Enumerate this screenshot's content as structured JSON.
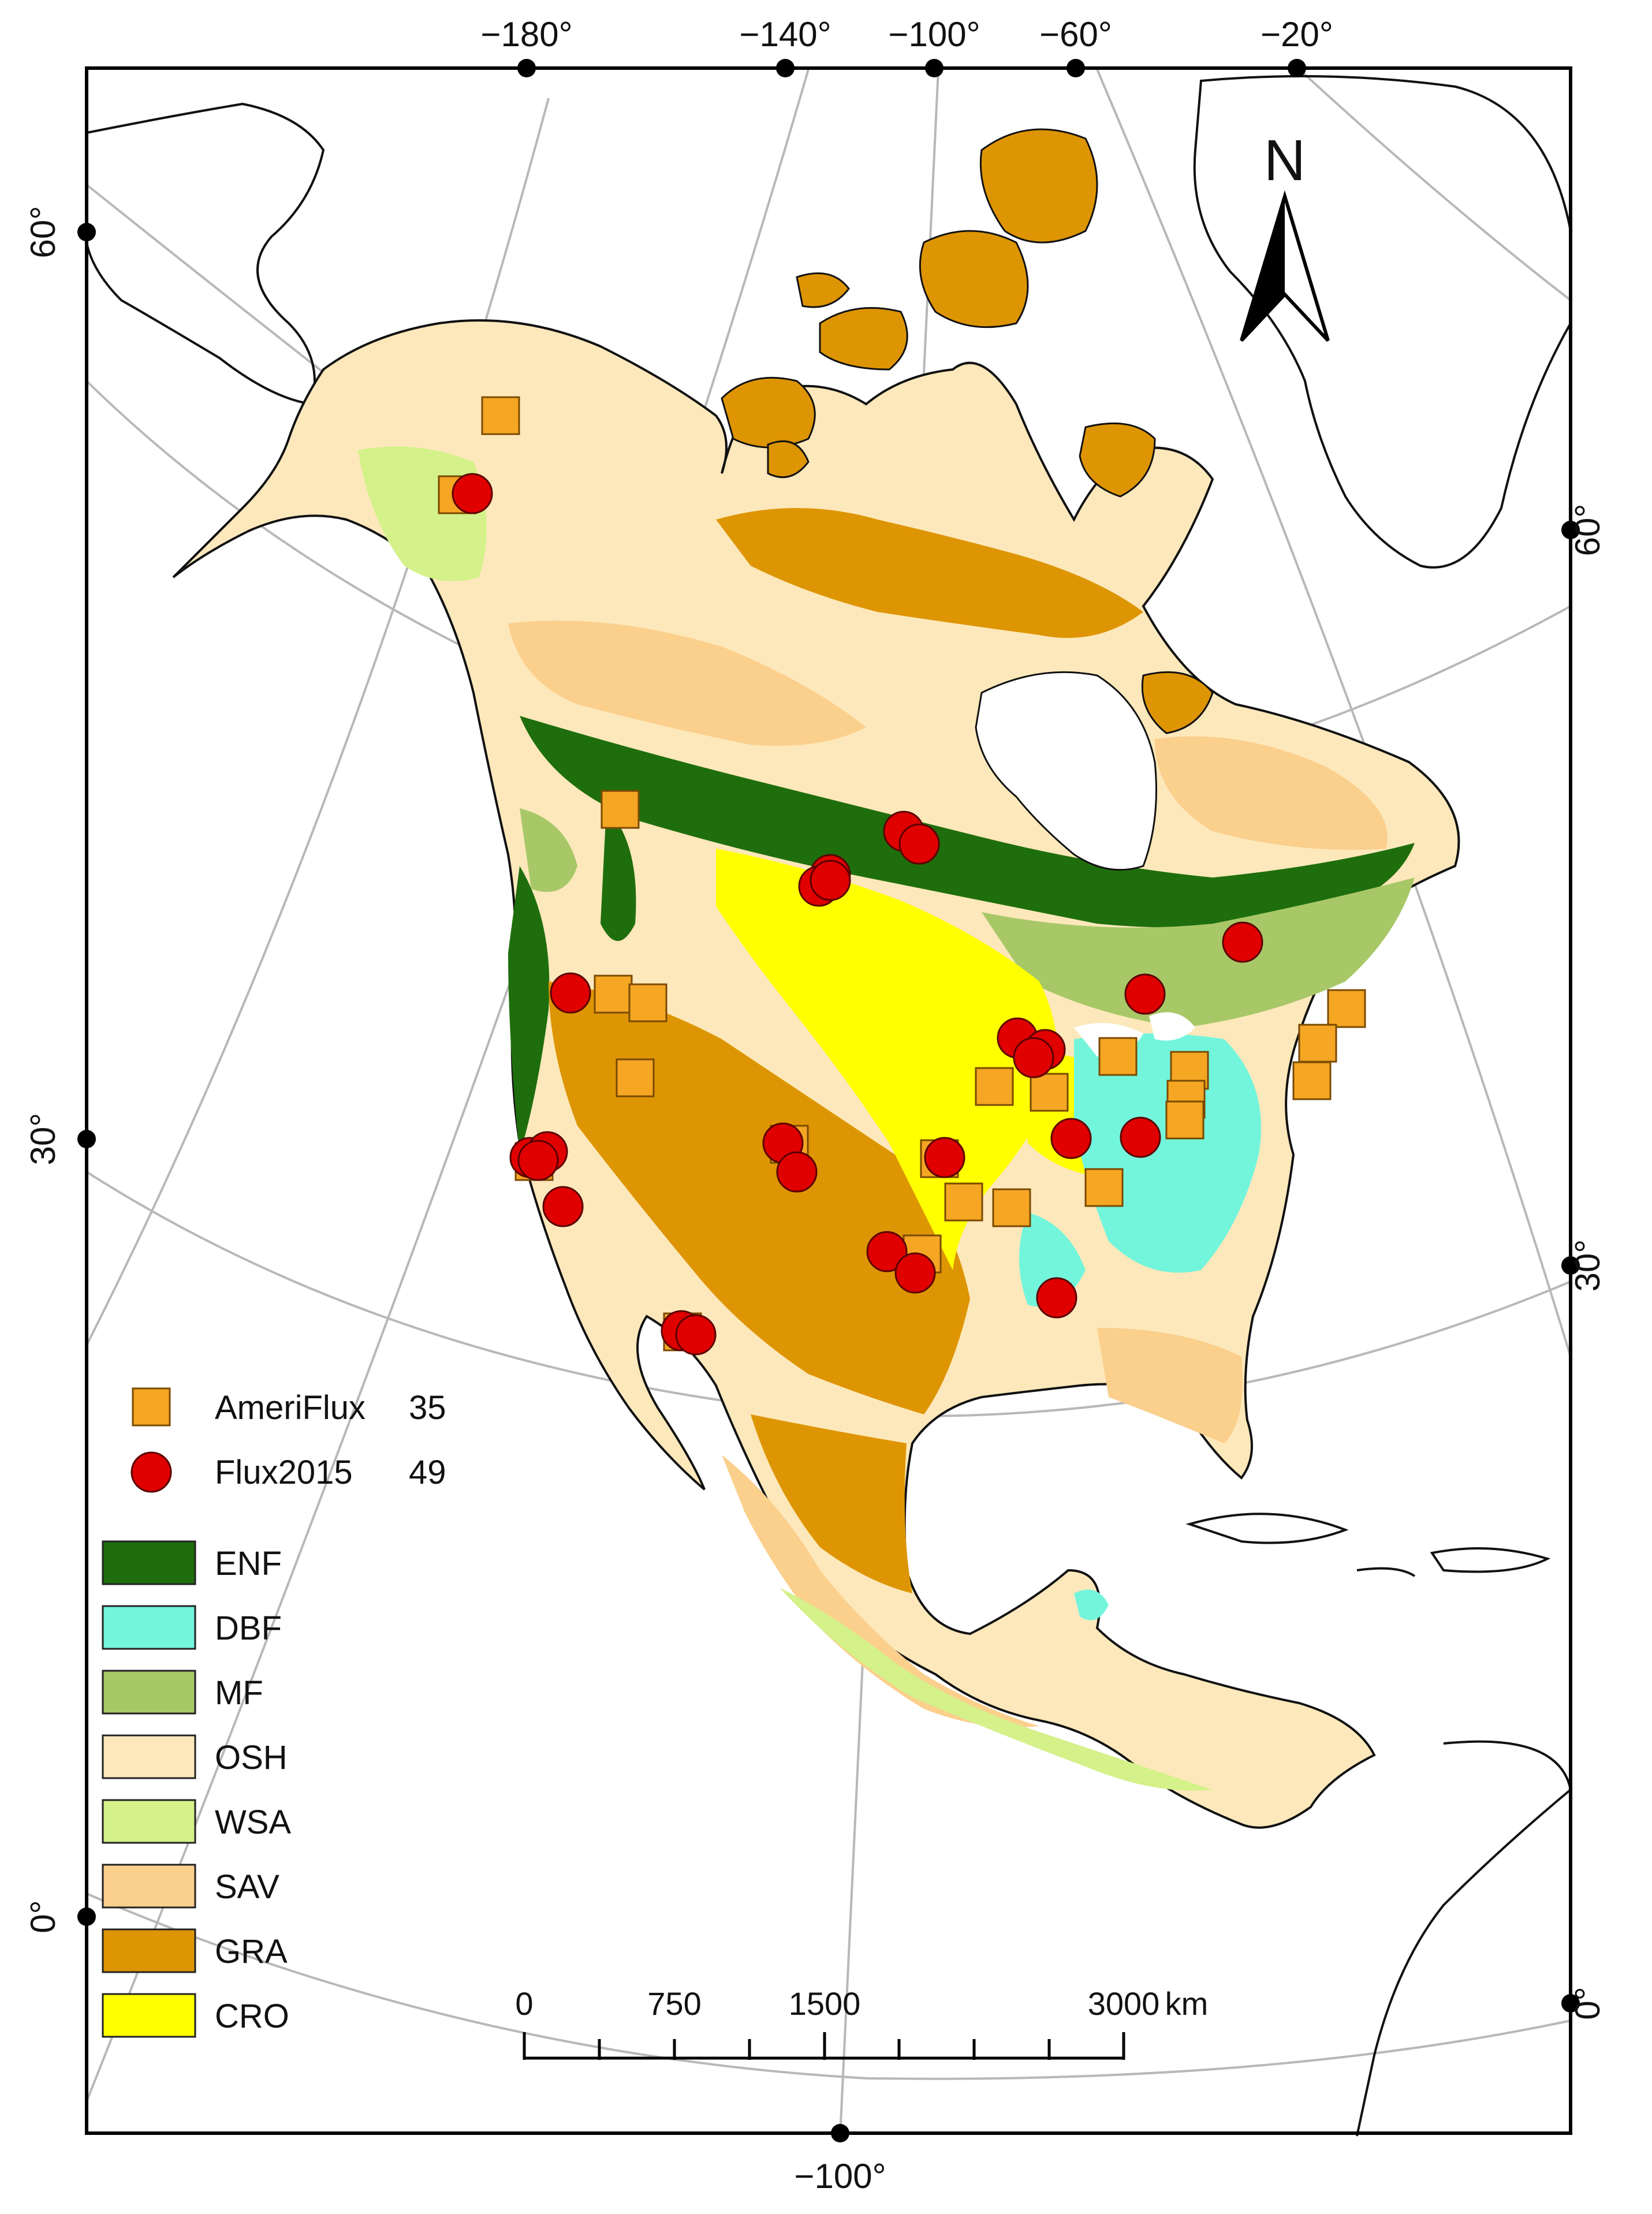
{
  "top_ticks": [
    "−180°",
    "−140°",
    "−100°",
    "−60°",
    "−20°"
  ],
  "bottom_ticks": [
    "−100°"
  ],
  "left_ticks": [
    "60°",
    "30°",
    "0°"
  ],
  "right_ticks": [
    "60°",
    "30°",
    "0°"
  ],
  "north_label": "N",
  "sites_legend": [
    {
      "label": "AmeriFlux",
      "count": "35",
      "color": "#f5a623",
      "shape": "square"
    },
    {
      "label": "Flux2015",
      "count": "49",
      "color": "#e00000",
      "shape": "circle"
    }
  ],
  "landcover_legend": [
    {
      "code": "ENF",
      "color": "#1f6e0d"
    },
    {
      "code": "DBF",
      "color": "#73f5dc"
    },
    {
      "code": "MF",
      "color": "#a8c868"
    },
    {
      "code": "OSH",
      "color": "#fde8bb"
    },
    {
      "code": "WSA",
      "color": "#d4f18a"
    },
    {
      "code": "SAV",
      "color": "#fbcf8c"
    },
    {
      "code": "GRA",
      "color": "#de9503"
    },
    {
      "code": "CRO",
      "color": "#ffff00"
    }
  ],
  "scale_bar": {
    "labels": [
      "0",
      "750",
      "1500",
      "3000"
    ],
    "unit": "km"
  }
}
